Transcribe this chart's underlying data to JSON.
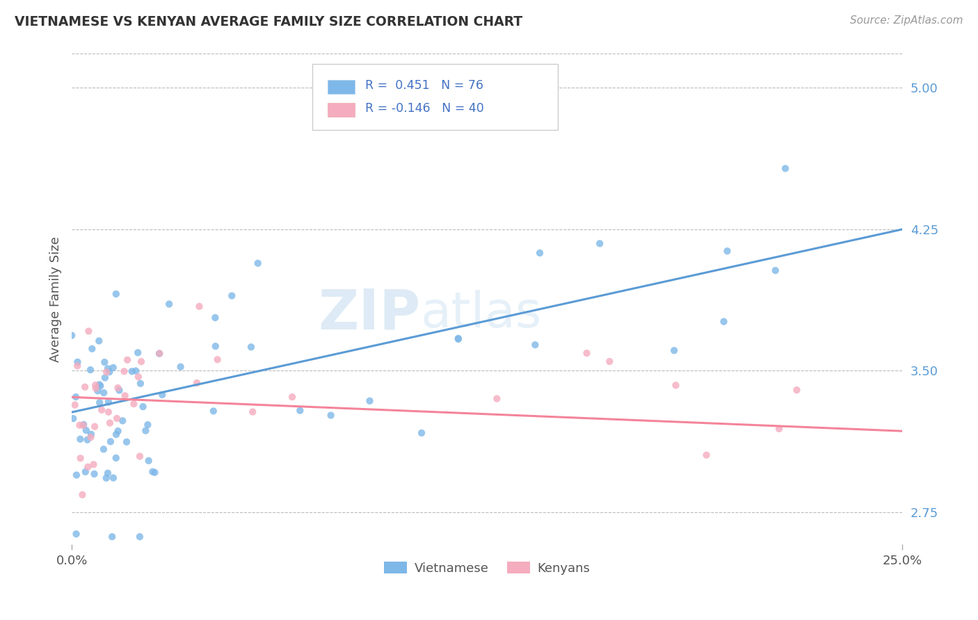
{
  "title": "VIETNAMESE VS KENYAN AVERAGE FAMILY SIZE CORRELATION CHART",
  "source": "Source: ZipAtlas.com",
  "xlabel": "",
  "ylabel": "Average Family Size",
  "xlim": [
    0.0,
    0.25
  ],
  "ylim": [
    2.58,
    5.18
  ],
  "xtick_labels": [
    "0.0%",
    "25.0%"
  ],
  "ytick_labels_right": [
    "2.75",
    "3.50",
    "4.25",
    "5.00"
  ],
  "ytick_vals_right": [
    2.75,
    3.5,
    4.25,
    5.0
  ],
  "r_vietnamese": 0.451,
  "n_vietnamese": 76,
  "r_kenyan": -0.146,
  "n_kenyan": 40,
  "color_vietnamese": "#7EB8E8",
  "color_kenyan": "#F4ACBE",
  "color_viet_line": "#5B9BD5",
  "color_ken_line": "#F4849A",
  "watermark_zip": "ZIP",
  "watermark_atlas": "atlas",
  "background_color": "#FFFFFF",
  "viet_line_x0": 0.0,
  "viet_line_y0": 3.28,
  "viet_line_x1": 0.25,
  "viet_line_y1": 4.25,
  "ken_line_x0": 0.0,
  "ken_line_y0": 3.36,
  "ken_line_x1": 0.25,
  "ken_line_y1": 3.18
}
